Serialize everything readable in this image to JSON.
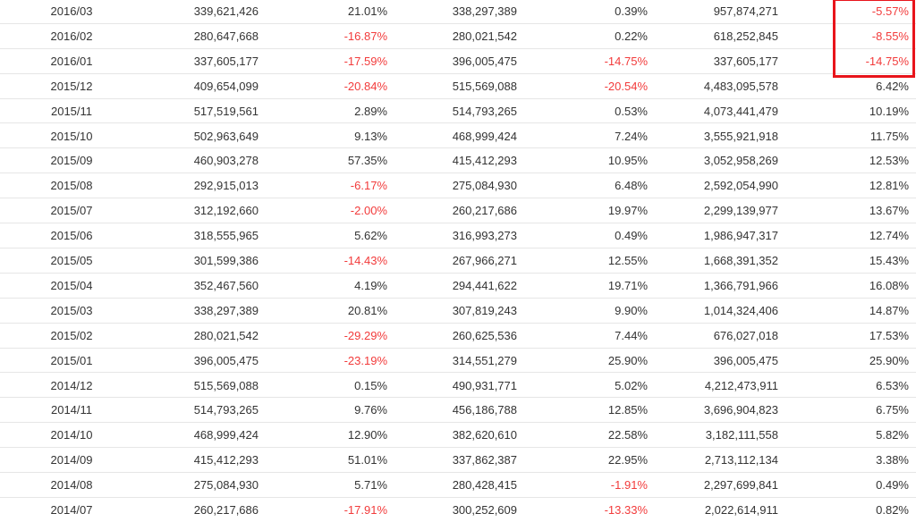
{
  "table": {
    "rows": [
      [
        "2016/03",
        "339,621,426",
        "21.01%",
        "338,297,389",
        "0.39%",
        "957,874,271",
        "-5.57%"
      ],
      [
        "2016/02",
        "280,647,668",
        "-16.87%",
        "280,021,542",
        "0.22%",
        "618,252,845",
        "-8.55%"
      ],
      [
        "2016/01",
        "337,605,177",
        "-17.59%",
        "396,005,475",
        "-14.75%",
        "337,605,177",
        "-14.75%"
      ],
      [
        "2015/12",
        "409,654,099",
        "-20.84%",
        "515,569,088",
        "-20.54%",
        "4,483,095,578",
        "6.42%"
      ],
      [
        "2015/11",
        "517,519,561",
        "2.89%",
        "514,793,265",
        "0.53%",
        "4,073,441,479",
        "10.19%"
      ],
      [
        "2015/10",
        "502,963,649",
        "9.13%",
        "468,999,424",
        "7.24%",
        "3,555,921,918",
        "11.75%"
      ],
      [
        "2015/09",
        "460,903,278",
        "57.35%",
        "415,412,293",
        "10.95%",
        "3,052,958,269",
        "12.53%"
      ],
      [
        "2015/08",
        "292,915,013",
        "-6.17%",
        "275,084,930",
        "6.48%",
        "2,592,054,990",
        "12.81%"
      ],
      [
        "2015/07",
        "312,192,660",
        "-2.00%",
        "260,217,686",
        "19.97%",
        "2,299,139,977",
        "13.67%"
      ],
      [
        "2015/06",
        "318,555,965",
        "5.62%",
        "316,993,273",
        "0.49%",
        "1,986,947,317",
        "12.74%"
      ],
      [
        "2015/05",
        "301,599,386",
        "-14.43%",
        "267,966,271",
        "12.55%",
        "1,668,391,352",
        "15.43%"
      ],
      [
        "2015/04",
        "352,467,560",
        "4.19%",
        "294,441,622",
        "19.71%",
        "1,366,791,966",
        "16.08%"
      ],
      [
        "2015/03",
        "338,297,389",
        "20.81%",
        "307,819,243",
        "9.90%",
        "1,014,324,406",
        "14.87%"
      ],
      [
        "2015/02",
        "280,021,542",
        "-29.29%",
        "260,625,536",
        "7.44%",
        "676,027,018",
        "17.53%"
      ],
      [
        "2015/01",
        "396,005,475",
        "-23.19%",
        "314,551,279",
        "25.90%",
        "396,005,475",
        "25.90%"
      ],
      [
        "2014/12",
        "515,569,088",
        "0.15%",
        "490,931,771",
        "5.02%",
        "4,212,473,911",
        "6.53%"
      ],
      [
        "2014/11",
        "514,793,265",
        "9.76%",
        "456,186,788",
        "12.85%",
        "3,696,904,823",
        "6.75%"
      ],
      [
        "2014/10",
        "468,999,424",
        "12.90%",
        "382,620,610",
        "22.58%",
        "3,182,111,558",
        "5.82%"
      ],
      [
        "2014/09",
        "415,412,293",
        "51.01%",
        "337,862,387",
        "22.95%",
        "2,713,112,134",
        "3.38%"
      ],
      [
        "2014/08",
        "275,084,930",
        "5.71%",
        "280,428,415",
        "-1.91%",
        "2,297,699,841",
        "0.49%"
      ],
      [
        "2014/07",
        "260,217,686",
        "-17.91%",
        "300,252,609",
        "-13.33%",
        "2,022,614,911",
        "0.82%"
      ]
    ]
  }
}
